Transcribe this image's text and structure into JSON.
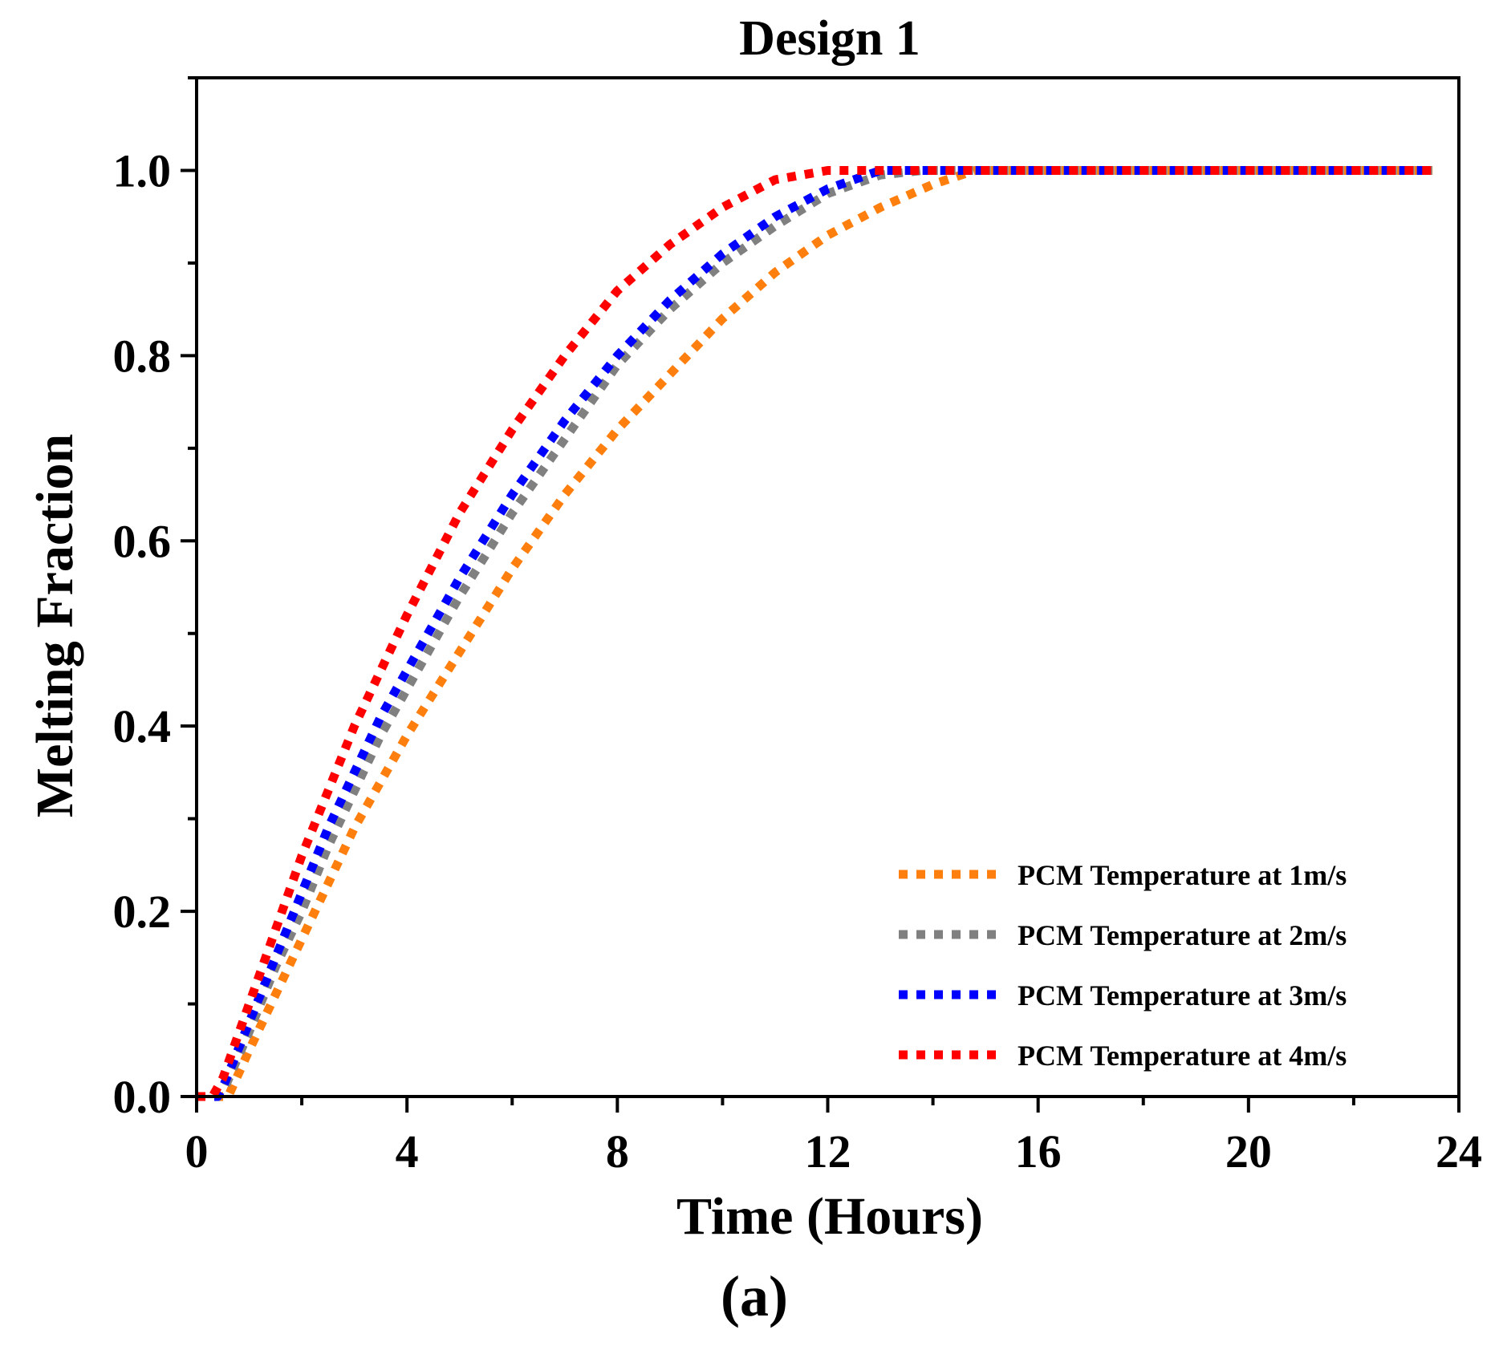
{
  "chart_data": {
    "type": "line",
    "title": "Design 1",
    "xlabel": "Time (Hours)",
    "ylabel": "Melting Fraction",
    "caption": "(a)",
    "xlim": [
      0,
      24
    ],
    "ylim": [
      0,
      1.1
    ],
    "x_ticks": [
      0,
      4,
      8,
      12,
      16,
      20,
      24
    ],
    "x_tick_labels": [
      "0",
      "4",
      "8",
      "12",
      "16",
      "20",
      "24"
    ],
    "y_ticks": [
      0.0,
      0.2,
      0.4,
      0.6,
      0.8,
      1.0
    ],
    "y_tick_labels": [
      "0.0",
      "0.2",
      "0.4",
      "0.6",
      "0.8",
      "1.0"
    ],
    "grid": false,
    "legend_position": "bottom-right",
    "line_style": "dotted",
    "series": [
      {
        "name": "PCM Temperature at 1m/s",
        "color": "#FF7F0E",
        "x": [
          0,
          0.5,
          0.6,
          1,
          1.5,
          2,
          2.5,
          3,
          3.5,
          4,
          5,
          6,
          7,
          8,
          9,
          10,
          11,
          12,
          13,
          14,
          14.8,
          15.5,
          17,
          18,
          20,
          22,
          23.5
        ],
        "y": [
          0,
          0,
          0,
          0.05,
          0.11,
          0.17,
          0.23,
          0.29,
          0.34,
          0.39,
          0.48,
          0.57,
          0.65,
          0.72,
          0.78,
          0.84,
          0.89,
          0.93,
          0.96,
          0.985,
          1.0,
          1.0,
          1.0,
          1.0,
          1.0,
          1.0,
          1.0
        ]
      },
      {
        "name": "PCM Temperature at 2m/s",
        "color": "#808080",
        "x": [
          0,
          0.4,
          0.5,
          1,
          1.5,
          2,
          2.5,
          3,
          3.5,
          4,
          5,
          6,
          7,
          8,
          9,
          10,
          11,
          12,
          13,
          13.8,
          15,
          17,
          20,
          23.5
        ],
        "y": [
          0,
          0,
          0.005,
          0.07,
          0.14,
          0.2,
          0.27,
          0.33,
          0.39,
          0.44,
          0.54,
          0.63,
          0.71,
          0.79,
          0.85,
          0.9,
          0.94,
          0.975,
          0.995,
          1.0,
          1.0,
          1.0,
          1.0,
          1.0
        ]
      },
      {
        "name": "PCM Temperature at 3m/s",
        "color": "#0000FF",
        "x": [
          0,
          0.4,
          0.5,
          1,
          1.5,
          2,
          2.5,
          3,
          3.5,
          4,
          5,
          6,
          7,
          8,
          9,
          10,
          11,
          12,
          13,
          14,
          17,
          20,
          23.5
        ],
        "y": [
          0,
          0,
          0.01,
          0.08,
          0.15,
          0.22,
          0.29,
          0.35,
          0.41,
          0.46,
          0.56,
          0.65,
          0.73,
          0.8,
          0.86,
          0.91,
          0.95,
          0.98,
          1.0,
          1.0,
          1.0,
          1.0,
          1.0
        ]
      },
      {
        "name": "PCM Temperature at 4m/s",
        "color": "#FF0000",
        "x": [
          0,
          0.3,
          0.5,
          1,
          1.5,
          2,
          2.5,
          3,
          3.5,
          4,
          5,
          6,
          7,
          8,
          9,
          10,
          11,
          12,
          14,
          16,
          18,
          20,
          22,
          23.5
        ],
        "y": [
          0,
          0,
          0.02,
          0.1,
          0.18,
          0.26,
          0.33,
          0.4,
          0.46,
          0.52,
          0.63,
          0.72,
          0.8,
          0.87,
          0.92,
          0.96,
          0.99,
          1.0,
          1.0,
          1.0,
          1.0,
          1.0,
          1.0,
          1.0
        ]
      }
    ]
  }
}
